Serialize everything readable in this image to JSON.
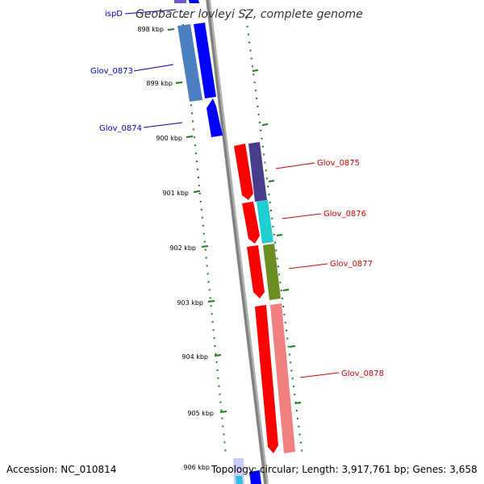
{
  "title": "Geobacter lovleyi SZ, complete genome",
  "accession": "Accession: NC_010814",
  "summary": "Topology: circular; Length: 3,917,761 bp; Genes: 3,658",
  "ticks": [
    "898 kbp",
    "899 kbp",
    "900 kbp",
    "901 kbp",
    "902 kbp",
    "903 kbp",
    "904 kbp",
    "905 kbp",
    "906 kbp"
  ],
  "genes_left": [
    "ispD",
    "Glov_0873",
    "Glov_0874"
  ],
  "genes_right": [
    "Glov_0875",
    "Glov_0876",
    "Glov_0877",
    "Glov_0878"
  ],
  "colors": {
    "backbone": "#808080",
    "tick": "#1e7b1e",
    "cds_forward": "#ff0000",
    "cds_reverse": "#0000ff",
    "label_left": "#0000c0",
    "label_right": "#d00000"
  }
}
